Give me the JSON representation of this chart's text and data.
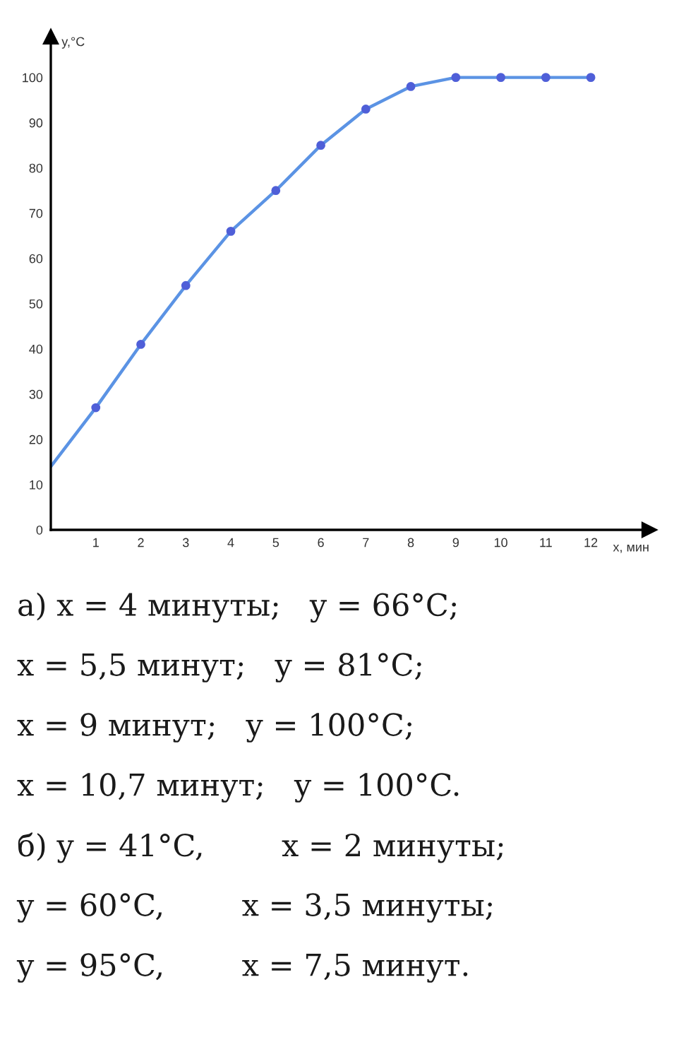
{
  "chart_data": {
    "type": "line",
    "xlabel": "x, мин",
    "ylabel": "y,°C",
    "xlim": [
      0,
      13.3
    ],
    "ylim": [
      0,
      109
    ],
    "xticks": [
      1,
      2,
      3,
      4,
      5,
      6,
      7,
      8,
      9,
      10,
      11,
      12
    ],
    "yticks": [
      0,
      10,
      20,
      30,
      40,
      50,
      60,
      70,
      80,
      90,
      100
    ],
    "series": [
      {
        "color": "#5b93e4",
        "marker": "none",
        "line_style": "solid",
        "x": [
          0,
          1,
          2,
          3,
          4,
          5,
          6,
          7,
          8,
          9,
          10,
          11,
          12
        ],
        "values": [
          14,
          27,
          41,
          54,
          66,
          75,
          85,
          93,
          98,
          100,
          100,
          100,
          100
        ]
      },
      {
        "type": "scatter",
        "color": "#4f5fd8",
        "marker": "circle",
        "x": [
          1,
          2,
          3,
          4,
          5,
          6,
          7,
          8,
          9,
          10,
          11,
          12
        ],
        "values": [
          27,
          41,
          54,
          66,
          75,
          85,
          93,
          98,
          100,
          100,
          100,
          100
        ]
      }
    ],
    "annotations": [
      "а) x = 4 минуты;   y = 66°C;",
      "x = 5,5 минут;   y = 81°C;",
      "x = 9 минут;   y = 100°C;",
      "x = 10,7 минут;   y = 100°C.",
      "б) y = 41°C,        x = 2 минуты;",
      "y = 60°C,        x = 3,5 минуты;",
      "y = 95°C,        x = 7,5 минут."
    ]
  }
}
